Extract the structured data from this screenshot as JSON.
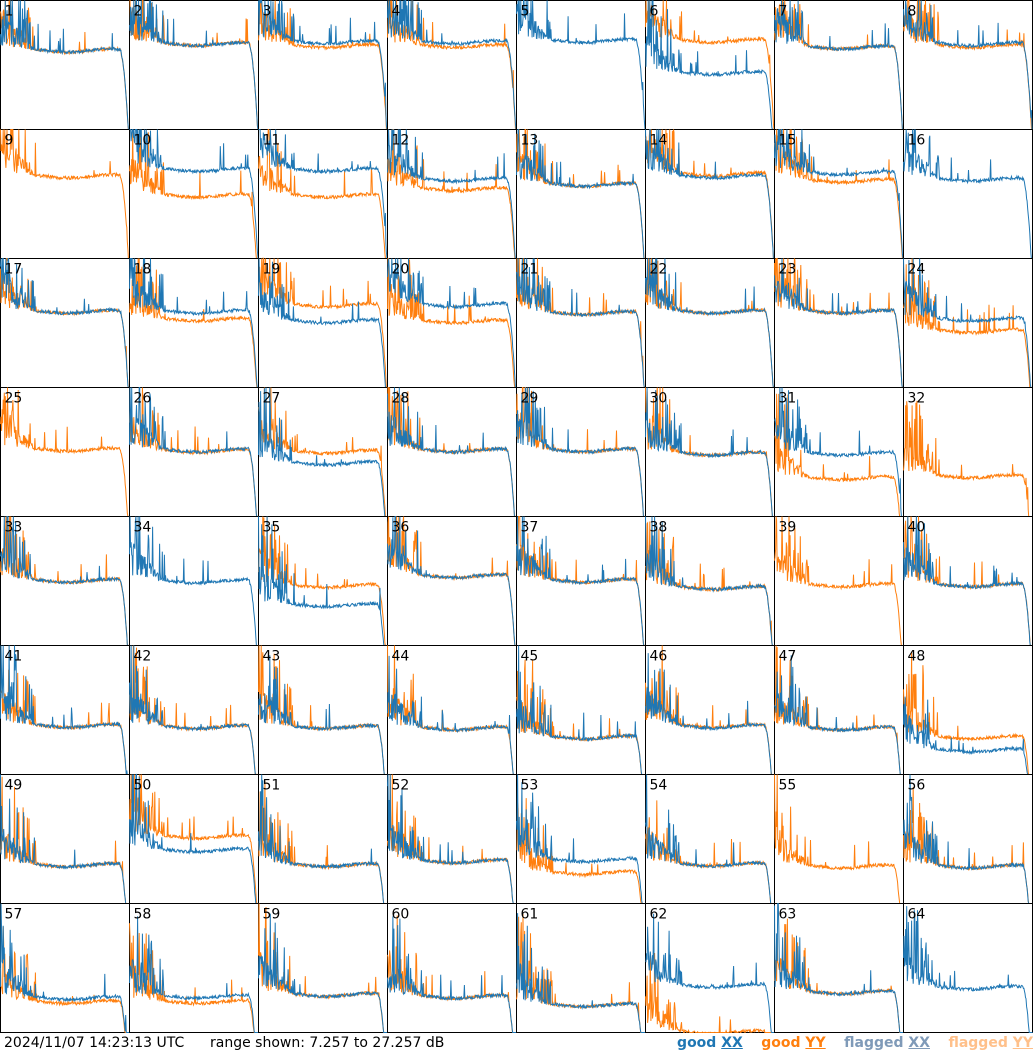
{
  "chart_data": {
    "type": "line",
    "grid": {
      "rows": 8,
      "cols": 8
    },
    "panels": [
      "1",
      "2",
      "3",
      "4",
      "5",
      "6",
      "7",
      "8",
      "9",
      "10",
      "11",
      "12",
      "13",
      "14",
      "15",
      "16",
      "17",
      "18",
      "19",
      "20",
      "21",
      "22",
      "23",
      "24",
      "25",
      "26",
      "27",
      "28",
      "29",
      "30",
      "31",
      "32",
      "33",
      "34",
      "35",
      "36",
      "37",
      "38",
      "39",
      "40",
      "41",
      "42",
      "43",
      "44",
      "45",
      "46",
      "47",
      "48",
      "49",
      "50",
      "51",
      "52",
      "53",
      "54",
      "55",
      "56",
      "57",
      "58",
      "59",
      "60",
      "61",
      "62",
      "63",
      "64"
    ],
    "series": [
      {
        "name": "good XX",
        "color": "#1f77b4"
      },
      {
        "name": "good YY",
        "color": "#ff7f0e"
      },
      {
        "name": "flagged XX",
        "color": "#7f9ab8"
      },
      {
        "name": "flagged YY",
        "color": "#ffc08a"
      }
    ],
    "ylim": [
      7.257,
      27.257
    ],
    "ylabel": "dB",
    "timestamp": "2024/11/07 14:23:13 UTC",
    "range_text": "range shown: 7.257 to 27.257 dB",
    "note_level_units": "approx. flat-region levels read off each panel, dB",
    "panel_levels": [
      [
        19.5,
        19.5
      ],
      [
        20.5,
        20.5
      ],
      [
        20.8,
        20.2
      ],
      [
        20.8,
        20.2
      ],
      [
        21,
        null
      ],
      [
        16,
        21
      ],
      [
        20,
        20
      ],
      [
        20.5,
        20.2
      ],
      [
        null,
        20
      ],
      [
        21,
        17
      ],
      [
        21,
        17
      ],
      [
        19.5,
        18
      ],
      [
        18.7,
        18.7
      ],
      [
        20,
        20.3
      ],
      [
        20.5,
        19.3
      ],
      [
        19.5,
        null
      ],
      [
        19,
        19
      ],
      [
        19,
        17.8
      ],
      [
        17.5,
        20
      ],
      [
        20,
        17.5
      ],
      [
        18.8,
        18.8
      ],
      [
        19,
        19
      ],
      [
        19,
        19
      ],
      [
        17.8,
        16
      ],
      [
        null,
        17.6
      ],
      [
        17.5,
        17.4
      ],
      [
        15.5,
        17.3
      ],
      [
        17.5,
        17.5
      ],
      [
        17.5,
        17.5
      ],
      [
        17,
        17
      ],
      [
        17,
        13.2
      ],
      [
        null,
        13.5
      ],
      [
        17.3,
        17.3
      ],
      [
        17.2,
        null
      ],
      [
        13.5,
        16.5
      ],
      [
        18,
        18
      ],
      [
        17.3,
        17.3
      ],
      [
        16.2,
        16.2
      ],
      [
        null,
        16.6
      ],
      [
        16.6,
        16.6
      ],
      [
        14.8,
        14.8
      ],
      [
        14.6,
        14.6
      ],
      [
        14.6,
        14.6
      ],
      [
        14.4,
        14.4
      ],
      [
        13,
        13
      ],
      [
        14.7,
        14.8
      ],
      [
        14.4,
        14.4
      ],
      [
        11,
        13
      ],
      [
        13.2,
        13.2
      ],
      [
        15.5,
        17.6
      ],
      [
        13.2,
        13.2
      ],
      [
        13.8,
        13.8
      ],
      [
        14,
        12
      ],
      [
        13.3,
        13.3
      ],
      [
        null,
        13
      ],
      [
        13,
        13
      ],
      [
        12.6,
        12
      ],
      [
        12.8,
        12
      ],
      [
        13.1,
        13.1
      ],
      [
        12.8,
        12.8
      ],
      [
        11.5,
        11.5
      ],
      [
        14.5,
        7.3
      ],
      [
        13.5,
        13.5
      ],
      [
        14.2,
        null
      ]
    ]
  },
  "footer": {
    "timestamp": "2024/11/07 14:23:13 UTC",
    "range": "range shown: 7.257 to 27.257 dB",
    "legend": [
      {
        "word": "good",
        "pol": "XX",
        "color": "#1f77b4"
      },
      {
        "word": "good",
        "pol": "YY",
        "color": "#ff7f0e"
      },
      {
        "word": "flagged",
        "pol": "XX",
        "color": "#7f9ab8"
      },
      {
        "word": "flagged",
        "pol": "YY",
        "color": "#ffc08a"
      }
    ]
  }
}
